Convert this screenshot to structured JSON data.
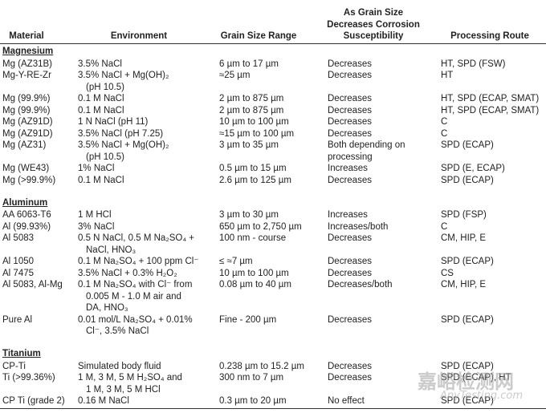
{
  "header": [
    "Material",
    "Environment",
    "Grain Size Range",
    [
      "As Grain Size",
      "Decreases Corrosion",
      "Susceptibility"
    ],
    "Processing Route"
  ],
  "sections": [
    {
      "title": "Magnesium",
      "rows": [
        [
          "Mg (AZ31B)",
          "3.5% NaCl",
          "6 µm to 17 µm",
          "Decreases",
          "HT, SPD (FSW)"
        ],
        [
          "Mg-Y-RE-Zr",
          [
            "3.5% NaCl + Mg(OH)₂",
            "(pH 10.5)"
          ],
          "≈25 µm",
          "Decreases",
          "HT"
        ],
        [
          "Mg (99.9%)",
          "0.1 M NaCl",
          "2 µm to 875 µm",
          "Decreases",
          "HT, SPD (ECAP, SMAT)"
        ],
        [
          "Mg (99.9%)",
          "0.1 M NaCl",
          "2 µm to 875 µm",
          "Decreases",
          "HT, SPD (ECAP, SMAT)"
        ],
        [
          "Mg (AZ91D)",
          "1 N NaCl (pH 11)",
          "10 µm to 100 µm",
          "Decreases",
          "C"
        ],
        [
          "Mg (AZ91D)",
          "3.5% NaCl (pH 7.25)",
          "≈15 µm to 100 µm",
          "Decreases",
          "C"
        ],
        [
          "Mg (AZ31)",
          [
            "3.5% NaCl + Mg(OH)₂",
            "(pH 10.5)"
          ],
          "3 µm to 35 µm",
          [
            "Both depending on",
            "processing"
          ],
          "SPD (ECAP)"
        ],
        [
          "Mg (WE43)",
          "1% NaCl",
          "0.5 µm to 15 µm",
          "Increases",
          "SPD (E, ECAP)"
        ],
        [
          "Mg (>99.9%)",
          "0.1 M NaCl",
          "2.6 µm to 125 µm",
          "Decreases",
          "SPD (ECAP)"
        ]
      ]
    },
    {
      "title": "Aluminum",
      "rows": [
        [
          "AA 6063-T6",
          "1 M HCl",
          "3 µm to 30 µm",
          "Increases",
          "SPD (FSP)"
        ],
        [
          "Al (99.93%)",
          "3% NaCl",
          "650 µm to 2,750 µm",
          "Increases/both",
          "C"
        ],
        [
          "Al 5083",
          [
            "0.5 N NaCl, 0.5 M Na₂SO₄ +",
            "NaCl, HNO₃"
          ],
          "100 nm - course",
          "Decreases",
          "CM, HIP, E"
        ],
        [
          "Al 1050",
          "0.1 M Na₂SO₄ + 100 ppm Cl⁻",
          "≤ ≈7 µm",
          "Decreases",
          "SPD (ECAP)"
        ],
        [
          "Al 7475",
          "3.5% NaCl + 0.3% H₂O₂",
          "10 µm to 100 µm",
          "Decreases",
          "CS"
        ],
        [
          "Al 5083, Al-Mg",
          [
            "0.1 M Na₂SO₄ with Cl⁻ from",
            "0.005 M - 1.0 M air and",
            "DA, HNO₃"
          ],
          "0.08 µm to 40 µm",
          "Decreases/both",
          "CM, HIP, E"
        ],
        [
          "Pure Al",
          [
            "0.01 mol/L Na₂SO₄ + 0.01%",
            "Cl⁻, 3.5% NaCl"
          ],
          "Fine - 200 µm",
          "Decreases",
          "SPD (ECAP)"
        ]
      ]
    },
    {
      "title": "Titanium",
      "rows": [
        [
          "CP-Ti",
          "Simulated body fluid",
          "0.238 µm to 15.2 µm",
          "Decreases",
          "SPD (ECAP)"
        ],
        [
          "Ti (>99.36%)",
          [
            "1 M, 3 M, 5 M H₂SO₄ and",
            "1 M, 3 M, 5 M HCl"
          ],
          "300 nm to 7 µm",
          "Decreases",
          "SPD (ECAP), HT"
        ],
        [
          "CP Ti (grade 2)",
          "0.16 M NaCl",
          "0.3 µm to 20 µm",
          "No effect",
          "SPD (ECAP)"
        ]
      ]
    }
  ],
  "watermark": {
    "title": "嘉峪检测网",
    "subtitle": "AnyTesting.com"
  }
}
